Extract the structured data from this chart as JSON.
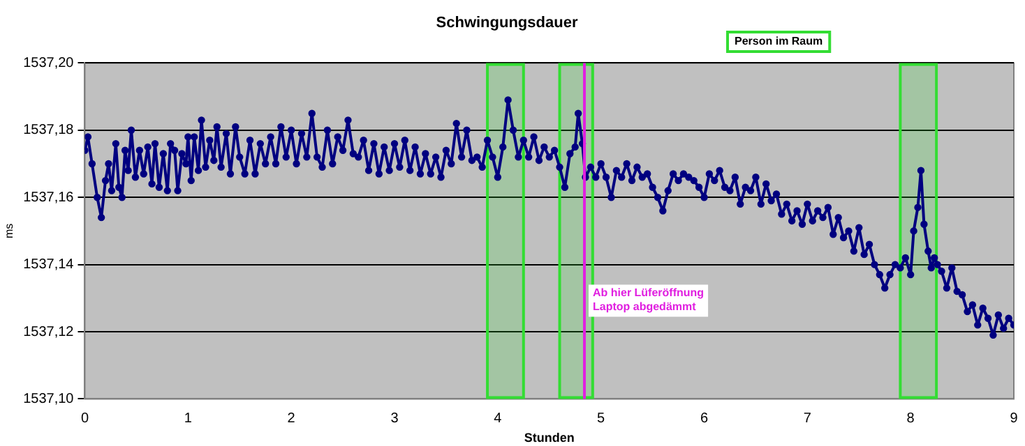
{
  "chart_data": {
    "type": "line",
    "title": "Schwingungsdauer",
    "xlabel": "Stunden",
    "ylabel": "ms",
    "x": [
      0,
      0.03,
      0.07,
      0.12,
      0.16,
      0.2,
      0.23,
      0.26,
      0.3,
      0.33,
      0.36,
      0.39,
      0.42,
      0.45,
      0.49,
      0.53,
      0.57,
      0.61,
      0.65,
      0.68,
      0.72,
      0.76,
      0.8,
      0.83,
      0.87,
      0.9,
      0.94,
      0.98,
      1.0,
      1.03,
      1.06,
      1.1,
      1.13,
      1.17,
      1.21,
      1.25,
      1.28,
      1.32,
      1.37,
      1.41,
      1.46,
      1.5,
      1.55,
      1.6,
      1.65,
      1.7,
      1.75,
      1.8,
      1.85,
      1.9,
      1.95,
      2.0,
      2.05,
      2.1,
      2.15,
      2.2,
      2.25,
      2.3,
      2.35,
      2.4,
      2.45,
      2.5,
      2.55,
      2.6,
      2.65,
      2.7,
      2.75,
      2.8,
      2.85,
      2.9,
      2.95,
      3.0,
      3.05,
      3.1,
      3.15,
      3.2,
      3.25,
      3.3,
      3.35,
      3.4,
      3.45,
      3.5,
      3.55,
      3.6,
      3.65,
      3.7,
      3.75,
      3.8,
      3.85,
      3.9,
      3.95,
      4.0,
      4.05,
      4.1,
      4.15,
      4.2,
      4.25,
      4.3,
      4.35,
      4.4,
      4.45,
      4.5,
      4.55,
      4.6,
      4.65,
      4.7,
      4.75,
      4.78,
      4.82,
      4.85,
      4.9,
      4.95,
      5.0,
      5.05,
      5.1,
      5.15,
      5.2,
      5.25,
      5.3,
      5.35,
      5.4,
      5.45,
      5.5,
      5.55,
      5.6,
      5.65,
      5.7,
      5.75,
      5.8,
      5.85,
      5.9,
      5.95,
      6.0,
      6.05,
      6.1,
      6.15,
      6.2,
      6.25,
      6.3,
      6.35,
      6.4,
      6.45,
      6.5,
      6.55,
      6.6,
      6.65,
      6.7,
      6.75,
      6.8,
      6.85,
      6.9,
      6.95,
      7.0,
      7.05,
      7.1,
      7.15,
      7.2,
      7.25,
      7.3,
      7.35,
      7.4,
      7.45,
      7.5,
      7.55,
      7.6,
      7.65,
      7.7,
      7.75,
      7.8,
      7.85,
      7.9,
      7.95,
      8.0,
      8.03,
      8.07,
      8.1,
      8.13,
      8.17,
      8.2,
      8.23,
      8.26,
      8.3,
      8.35,
      8.4,
      8.45,
      8.5,
      8.55,
      8.6,
      8.65,
      8.7,
      8.75,
      8.8,
      8.85,
      8.9,
      8.95,
      9.0
    ],
    "series": [
      {
        "color": "#000080",
        "values": [
          1537.174,
          1537.178,
          1537.17,
          1537.16,
          1537.154,
          1537.165,
          1537.17,
          1537.162,
          1537.176,
          1537.163,
          1537.16,
          1537.174,
          1537.168,
          1537.18,
          1537.166,
          1537.174,
          1537.167,
          1537.175,
          1537.164,
          1537.176,
          1537.163,
          1537.173,
          1537.162,
          1537.176,
          1537.174,
          1537.162,
          1537.173,
          1537.17,
          1537.178,
          1537.165,
          1537.178,
          1537.168,
          1537.183,
          1537.169,
          1537.177,
          1537.171,
          1537.181,
          1537.169,
          1537.179,
          1537.167,
          1537.181,
          1537.172,
          1537.167,
          1537.177,
          1537.167,
          1537.176,
          1537.17,
          1537.178,
          1537.17,
          1537.181,
          1537.172,
          1537.18,
          1537.17,
          1537.179,
          1537.172,
          1537.185,
          1537.172,
          1537.169,
          1537.18,
          1537.17,
          1537.178,
          1537.174,
          1537.183,
          1537.173,
          1537.172,
          1537.177,
          1537.168,
          1537.176,
          1537.167,
          1537.175,
          1537.168,
          1537.176,
          1537.169,
          1537.177,
          1537.168,
          1537.175,
          1537.167,
          1537.173,
          1537.167,
          1537.172,
          1537.166,
          1537.174,
          1537.17,
          1537.182,
          1537.172,
          1537.18,
          1537.171,
          1537.172,
          1537.169,
          1537.177,
          1537.172,
          1537.166,
          1537.175,
          1537.189,
          1537.18,
          1537.172,
          1537.177,
          1537.172,
          1537.178,
          1537.171,
          1537.175,
          1537.172,
          1537.174,
          1537.169,
          1537.163,
          1537.173,
          1537.175,
          1537.185,
          1537.176,
          1537.166,
          1537.169,
          1537.166,
          1537.17,
          1537.166,
          1537.16,
          1537.168,
          1537.166,
          1537.17,
          1537.165,
          1537.169,
          1537.166,
          1537.167,
          1537.163,
          1537.16,
          1537.156,
          1537.162,
          1537.167,
          1537.165,
          1537.167,
          1537.166,
          1537.165,
          1537.163,
          1537.16,
          1537.167,
          1537.165,
          1537.168,
          1537.163,
          1537.162,
          1537.166,
          1537.158,
          1537.163,
          1537.162,
          1537.166,
          1537.158,
          1537.164,
          1537.159,
          1537.161,
          1537.155,
          1537.158,
          1537.153,
          1537.156,
          1537.152,
          1537.158,
          1537.153,
          1537.156,
          1537.154,
          1537.157,
          1537.149,
          1537.154,
          1537.148,
          1537.15,
          1537.144,
          1537.151,
          1537.143,
          1537.146,
          1537.14,
          1537.137,
          1537.133,
          1537.137,
          1537.14,
          1537.139,
          1537.142,
          1537.137,
          1537.15,
          1537.157,
          1537.168,
          1537.152,
          1537.144,
          1537.139,
          1537.142,
          1537.14,
          1537.138,
          1537.133,
          1537.139,
          1537.132,
          1537.131,
          1537.126,
          1537.128,
          1537.122,
          1537.127,
          1537.124,
          1537.119,
          1537.125,
          1537.121,
          1537.124,
          1537.122
        ]
      }
    ],
    "xlim": [
      0,
      9
    ],
    "xticks": [
      0,
      1,
      2,
      3,
      4,
      5,
      6,
      7,
      8,
      9
    ],
    "ylim": [
      1537.1,
      1537.2
    ],
    "yticks": [
      {
        "value": 1537.1,
        "label": "1537,10"
      },
      {
        "value": 1537.12,
        "label": "1537,12"
      },
      {
        "value": 1537.14,
        "label": "1537,14"
      },
      {
        "value": 1537.16,
        "label": "1537,16"
      },
      {
        "value": 1537.18,
        "label": "1537,18"
      },
      {
        "value": 1537.2,
        "label": "1537,20"
      }
    ],
    "grid": "y",
    "marker": "circle",
    "legend": false,
    "bands": [
      {
        "axis": "x",
        "from": 3.9,
        "to": 4.25,
        "color": "#33dd33"
      },
      {
        "axis": "x",
        "from": 4.6,
        "to": 4.92,
        "color": "#33dd33"
      },
      {
        "axis": "x",
        "from": 7.9,
        "to": 8.25,
        "color": "#33dd33"
      }
    ],
    "ref_lines": [
      {
        "axis": "x",
        "value": 4.84,
        "label": "Ab hier Lüferöffnung\nLaptop abgedämmt",
        "color": "#e020e0"
      }
    ],
    "annotations": [
      "Person im Raum"
    ]
  }
}
